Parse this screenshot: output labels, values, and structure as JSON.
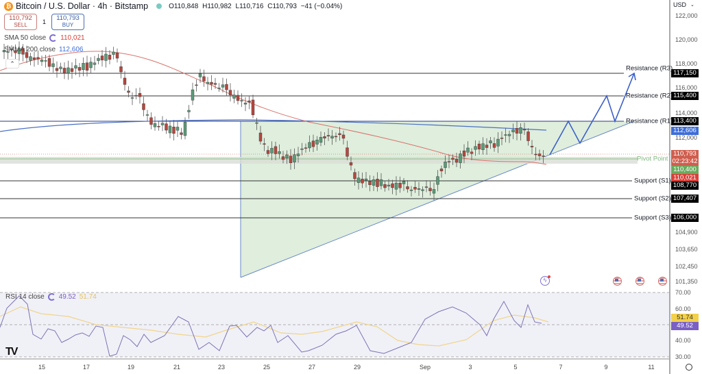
{
  "header": {
    "title": "Bitcoin / U.S. Dollar · 4h · Bitstamp",
    "open": "O110,848",
    "high": "H110,982",
    "low": "L110,716",
    "close": "C110,793",
    "change": "−41 (−0.04%)"
  },
  "trade": {
    "sell_price": "110,792",
    "sell_label": "SELL",
    "spread": "1",
    "buy_price": "110,793",
    "buy_label": "BUY"
  },
  "indicators": {
    "sma50_label": "SMA 50 close",
    "sma50_value": "110,021",
    "smma200_label": "SMMA 200 close",
    "smma200_value": "112,606",
    "rsi_label": "RSI 14 close",
    "rsi_value": "49.52",
    "rsi_ma_value": "51.74"
  },
  "axis": {
    "currency": "USD",
    "price_ticks": [
      "122,000",
      "120,000",
      "118,000",
      "116,000",
      "114,000",
      "112,000",
      "104,900",
      "103,650",
      "102,450",
      "101,350"
    ],
    "rsi_ticks": [
      "70.00",
      "60.00",
      "40.00",
      "30.00"
    ],
    "x_ticks": [
      "15",
      "17",
      "19",
      "21",
      "23",
      "25",
      "27",
      "29",
      "Sep",
      "3",
      "5",
      "7",
      "9",
      "11"
    ]
  },
  "price_labels": {
    "r3": "117,150",
    "r2": "115,400",
    "r1": "113,400",
    "smma": "112,606",
    "last": "110,793",
    "countdown": "02:23:42",
    "pivot": "110,400",
    "sma": "110,021",
    "s1": "108,770",
    "s2": "107,407",
    "s3": "106,000",
    "rsi_ma": "51.74",
    "rsi": "49.52"
  },
  "levels": {
    "r3": "Resistance (R3)",
    "r2": "Resistance (R2)",
    "r1": "Resistance (R1)",
    "pivot": "Pivot Point",
    "s1": "Support (S1)",
    "s2": "Support (S2)",
    "s3": "Support (S3)"
  },
  "colors": {
    "up": "#5b9a78",
    "down": "#b5473f",
    "sma50": "#d9726b",
    "smma200": "#4a6fc4",
    "rsi": "#7b74b5",
    "rsi_ma": "#f0d58a",
    "triangle_fill": "#dfeedd",
    "last_price": "#cf5e4e",
    "pivot_label": "#6aab5e",
    "sma_label": "#d9403a",
    "smma_label": "#3e6ed8",
    "rsi_label": "#7a5fc4",
    "rsi_ma_label": "#f2d04a"
  },
  "chart_data": [
    {
      "type": "candlestick",
      "title": "Bitcoin / U.S. Dollar · 4h · Bitstamp",
      "xlabel": "",
      "ylabel": "USD",
      "x_ticks": [
        "15",
        "17",
        "19",
        "21",
        "23",
        "25",
        "27",
        "29",
        "Sep",
        "3",
        "5",
        "7",
        "9",
        "11"
      ],
      "ylim": [
        100800,
        122500
      ],
      "last": {
        "open": 110848,
        "high": 110982,
        "low": 110716,
        "close": 110793,
        "change": -41,
        "change_pct": -0.04
      },
      "series": [
        {
          "name": "SMA 50 close",
          "last_value": 110021
        },
        {
          "name": "SMMA 200 close",
          "last_value": 112606
        }
      ],
      "horizontal_levels": [
        {
          "name": "Resistance (R3)",
          "value": 117150
        },
        {
          "name": "Resistance (R2)",
          "value": 115400
        },
        {
          "name": "Resistance (R1)",
          "value": 113400
        },
        {
          "name": "Pivot Point",
          "value": 110400
        },
        {
          "name": "Support (S1)",
          "value": 108770
        },
        {
          "name": "Support (S2)",
          "value": 107407
        },
        {
          "name": "Support (S3)",
          "value": 106000
        }
      ],
      "annotations": [
        "Ascending triangle shaded green from ~Aug 24 to ~Sep 10",
        "Projected zig-zag breakout path toward R3 (117,150)"
      ],
      "approx_close_path": [
        {
          "x": "14",
          "y": 119000
        },
        {
          "x": "15",
          "y": 118300
        },
        {
          "x": "16",
          "y": 117500
        },
        {
          "x": "17",
          "y": 117800
        },
        {
          "x": "18",
          "y": 118600
        },
        {
          "x": "19",
          "y": 115400
        },
        {
          "x": "20",
          "y": 113200
        },
        {
          "x": "21",
          "y": 112800
        },
        {
          "x": "22",
          "y": 117000
        },
        {
          "x": "23",
          "y": 116200
        },
        {
          "x": "24",
          "y": 115000
        },
        {
          "x": "25",
          "y": 111200
        },
        {
          "x": "26",
          "y": 110600
        },
        {
          "x": "27",
          "y": 111800
        },
        {
          "x": "28",
          "y": 112400
        },
        {
          "x": "29",
          "y": 108900
        },
        {
          "x": "30",
          "y": 108700
        },
        {
          "x": "31",
          "y": 108600
        },
        {
          "x": "Sep",
          "y": 108300
        },
        {
          "x": "2",
          "y": 110500
        },
        {
          "x": "3",
          "y": 111300
        },
        {
          "x": "4",
          "y": 111800
        },
        {
          "x": "5",
          "y": 112800
        },
        {
          "x": "6",
          "y": 110793
        }
      ]
    },
    {
      "type": "line",
      "title": "RSI 14 close",
      "ylim": [
        28,
        72
      ],
      "y_ticks": [
        70,
        60,
        40,
        30
      ],
      "series": [
        {
          "name": "RSI 14",
          "last_value": 49.52
        },
        {
          "name": "RSI MA",
          "last_value": 51.74
        }
      ]
    }
  ]
}
